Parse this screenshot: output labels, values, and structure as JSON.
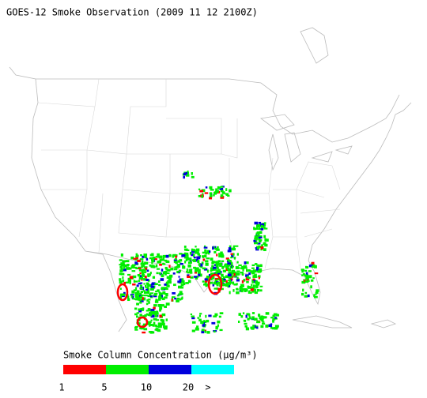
{
  "title": "GOES-12 Smoke Observation (2009 11 12  2100Z)",
  "legend": {
    "title": "Smoke Column Concentration (μg/m³)",
    "colors": [
      "#ff0000",
      "#00ee00",
      "#0000dd",
      "#00ffff"
    ],
    "labels": [
      "1",
      "5",
      "10",
      "20",
      ">"
    ]
  }
}
